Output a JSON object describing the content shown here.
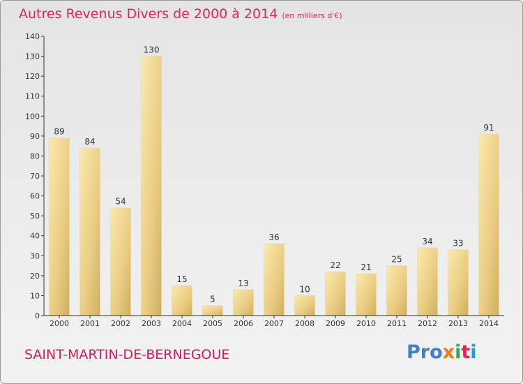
{
  "header": {
    "title": "Autres Revenus Divers de 2000 à 2014",
    "subtitle": "(en milliers d'€)"
  },
  "footer": {
    "commune": "SAINT-MARTIN-DE-BERNEGOUE",
    "logo": [
      "Pro",
      "x",
      "i",
      "t",
      "i"
    ]
  },
  "colors": {
    "title": "#e0245e",
    "bar_light": "#f8e3a0",
    "bar_dark": "#d4b66a",
    "axis": "#333333"
  },
  "chart_data": {
    "type": "bar",
    "title": "Autres Revenus Divers de 2000 à 2014",
    "subtitle": "(en milliers d'€)",
    "xlabel": "",
    "ylabel": "",
    "categories": [
      "2000",
      "2001",
      "2002",
      "2003",
      "2004",
      "2005",
      "2006",
      "2007",
      "2008",
      "2009",
      "2010",
      "2011",
      "2012",
      "2013",
      "2014"
    ],
    "values": [
      89,
      84,
      54,
      130,
      15,
      5,
      13,
      36,
      10,
      22,
      21,
      25,
      34,
      33,
      91
    ],
    "ylim": [
      0,
      140
    ],
    "yticks": [
      0,
      10,
      20,
      30,
      40,
      50,
      60,
      70,
      80,
      90,
      100,
      110,
      120,
      130,
      140
    ],
    "grid": false,
    "data_labels": true
  }
}
